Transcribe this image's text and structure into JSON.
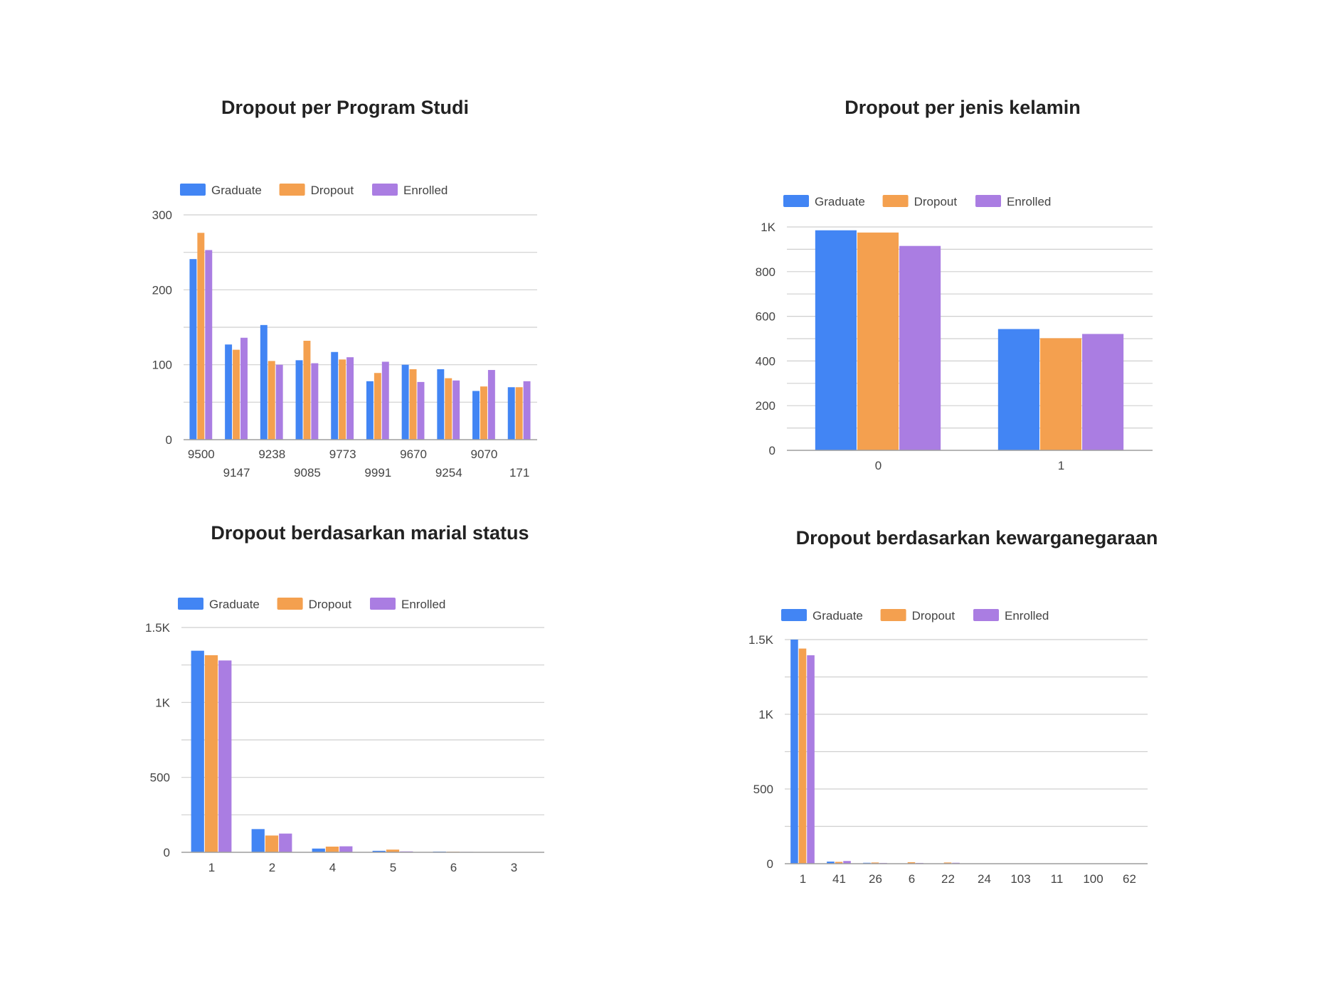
{
  "colors": {
    "graduate": "#4285F4",
    "dropout": "#F4A04F",
    "enrolled": "#AA7DE2",
    "grid": "#CFCFCF",
    "axis": "#9E9E9E",
    "text": "#444444",
    "title": "#222222"
  },
  "chart_data": [
    {
      "type": "bar",
      "title": "Dropout per Program Studi",
      "xlabel": "",
      "ylabel": "",
      "categories": [
        "9500",
        "9147",
        "9238",
        "9085",
        "9773",
        "9991",
        "9670",
        "9254",
        "9070",
        "171"
      ],
      "series": [
        {
          "name": "Graduate",
          "values": [
            241,
            127,
            153,
            106,
            117,
            78,
            100,
            94,
            65,
            70
          ]
        },
        {
          "name": "Dropout",
          "values": [
            276,
            120,
            105,
            132,
            107,
            89,
            94,
            82,
            71,
            70
          ]
        },
        {
          "name": "Enrolled",
          "values": [
            253,
            136,
            100,
            102,
            110,
            104,
            77,
            79,
            93,
            78
          ]
        }
      ],
      "ylim": [
        0,
        300
      ],
      "yticks": [
        "0",
        "100",
        "200",
        "300"
      ],
      "ytick_values": [
        0,
        100,
        200,
        300
      ],
      "minor_gridlines": 1,
      "staggered_labels": true,
      "legend": "top-left",
      "grid": true
    },
    {
      "type": "bar",
      "title": "Dropout per jenis kelamin",
      "xlabel": "",
      "ylabel": "",
      "categories": [
        "0",
        "1"
      ],
      "series": [
        {
          "name": "Graduate",
          "values": [
            985,
            543
          ]
        },
        {
          "name": "Dropout",
          "values": [
            975,
            502
          ]
        },
        {
          "name": "Enrolled",
          "values": [
            915,
            521
          ]
        }
      ],
      "ylim": [
        0,
        1000
      ],
      "yticks": [
        "0",
        "200",
        "400",
        "600",
        "800",
        "1K"
      ],
      "ytick_values": [
        0,
        200,
        400,
        600,
        800,
        1000
      ],
      "minor_gridlines": 1,
      "staggered_labels": false,
      "legend": "top-left",
      "grid": true
    },
    {
      "type": "bar",
      "title": "Dropout berdasarkan marial status",
      "xlabel": "",
      "ylabel": "",
      "categories": [
        "1",
        "2",
        "4",
        "5",
        "6",
        "3"
      ],
      "series": [
        {
          "name": "Graduate",
          "values": [
            1345,
            155,
            25,
            10,
            5,
            2
          ]
        },
        {
          "name": "Dropout",
          "values": [
            1315,
            112,
            38,
            18,
            4,
            2
          ]
        },
        {
          "name": "Enrolled",
          "values": [
            1280,
            125,
            40,
            6,
            3,
            1
          ]
        }
      ],
      "ylim": [
        0,
        1500
      ],
      "yticks": [
        "0",
        "500",
        "1K",
        "1.5K"
      ],
      "ytick_values": [
        0,
        500,
        1000,
        1500
      ],
      "minor_gridlines": 1,
      "staggered_labels": false,
      "legend": "top-left",
      "grid": true
    },
    {
      "type": "bar",
      "title": "Dropout berdasarkan kewarganegaraan",
      "xlabel": "",
      "ylabel": "",
      "categories": [
        "1",
        "41",
        "26",
        "6",
        "22",
        "24",
        "103",
        "11",
        "100",
        "62"
      ],
      "series": [
        {
          "name": "Graduate",
          "values": [
            1500,
            14,
            6,
            2,
            2,
            2,
            2,
            1,
            1,
            1
          ]
        },
        {
          "name": "Dropout",
          "values": [
            1440,
            12,
            8,
            10,
            8,
            2,
            1,
            1,
            1,
            1
          ]
        },
        {
          "name": "Enrolled",
          "values": [
            1395,
            18,
            5,
            5,
            6,
            2,
            1,
            1,
            1,
            1
          ]
        }
      ],
      "ylim": [
        0,
        1500
      ],
      "yticks": [
        "0",
        "500",
        "1K",
        "1.5K"
      ],
      "ytick_values": [
        0,
        500,
        1000,
        1500
      ],
      "minor_gridlines": 1,
      "staggered_labels": false,
      "legend": "top-left",
      "grid": true
    }
  ]
}
